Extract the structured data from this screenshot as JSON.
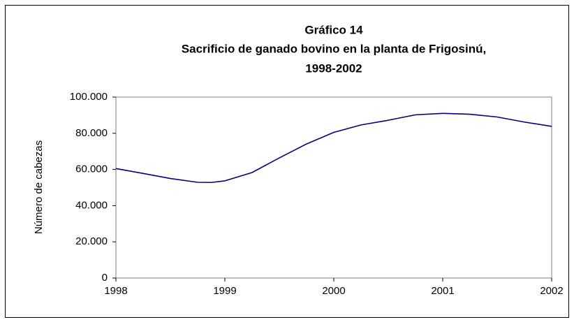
{
  "chart_data": {
    "type": "line",
    "title": [
      "Gráfico 14",
      "Sacrificio de ganado bovino en la planta de Frigosinú,",
      "1998-2002"
    ],
    "y_label": "Número de cabezas",
    "x": [
      1998,
      1998.25,
      1998.5,
      1998.75,
      1998.875,
      1999,
      1999.25,
      1999.5,
      1999.75,
      2000,
      2000.25,
      2000.5,
      2000.75,
      2001,
      2001.25,
      2001.5,
      2001.75,
      2002
    ],
    "series": [
      {
        "name": "Sacrificio",
        "color": "#000080",
        "values": [
          60500,
          57800,
          55000,
          52900,
          52800,
          53700,
          58300,
          66400,
          74100,
          80500,
          84600,
          87200,
          90200,
          91000,
          90500,
          89000,
          86200,
          83800
        ]
      }
    ],
    "xlim": [
      1998,
      2002
    ],
    "xticks": [
      1998,
      1999,
      2000,
      2001,
      2002
    ],
    "ylim": [
      0,
      100000
    ],
    "yticks": [
      0,
      {
        "value": 20000,
        "label": "20.000"
      },
      {
        "value": 40000,
        "label": "40.000"
      },
      {
        "value": 60000,
        "label": "60.000"
      },
      {
        "value": 80000,
        "label": "80.000"
      },
      {
        "value": 100000,
        "label": "100.000"
      }
    ],
    "grid": false
  }
}
